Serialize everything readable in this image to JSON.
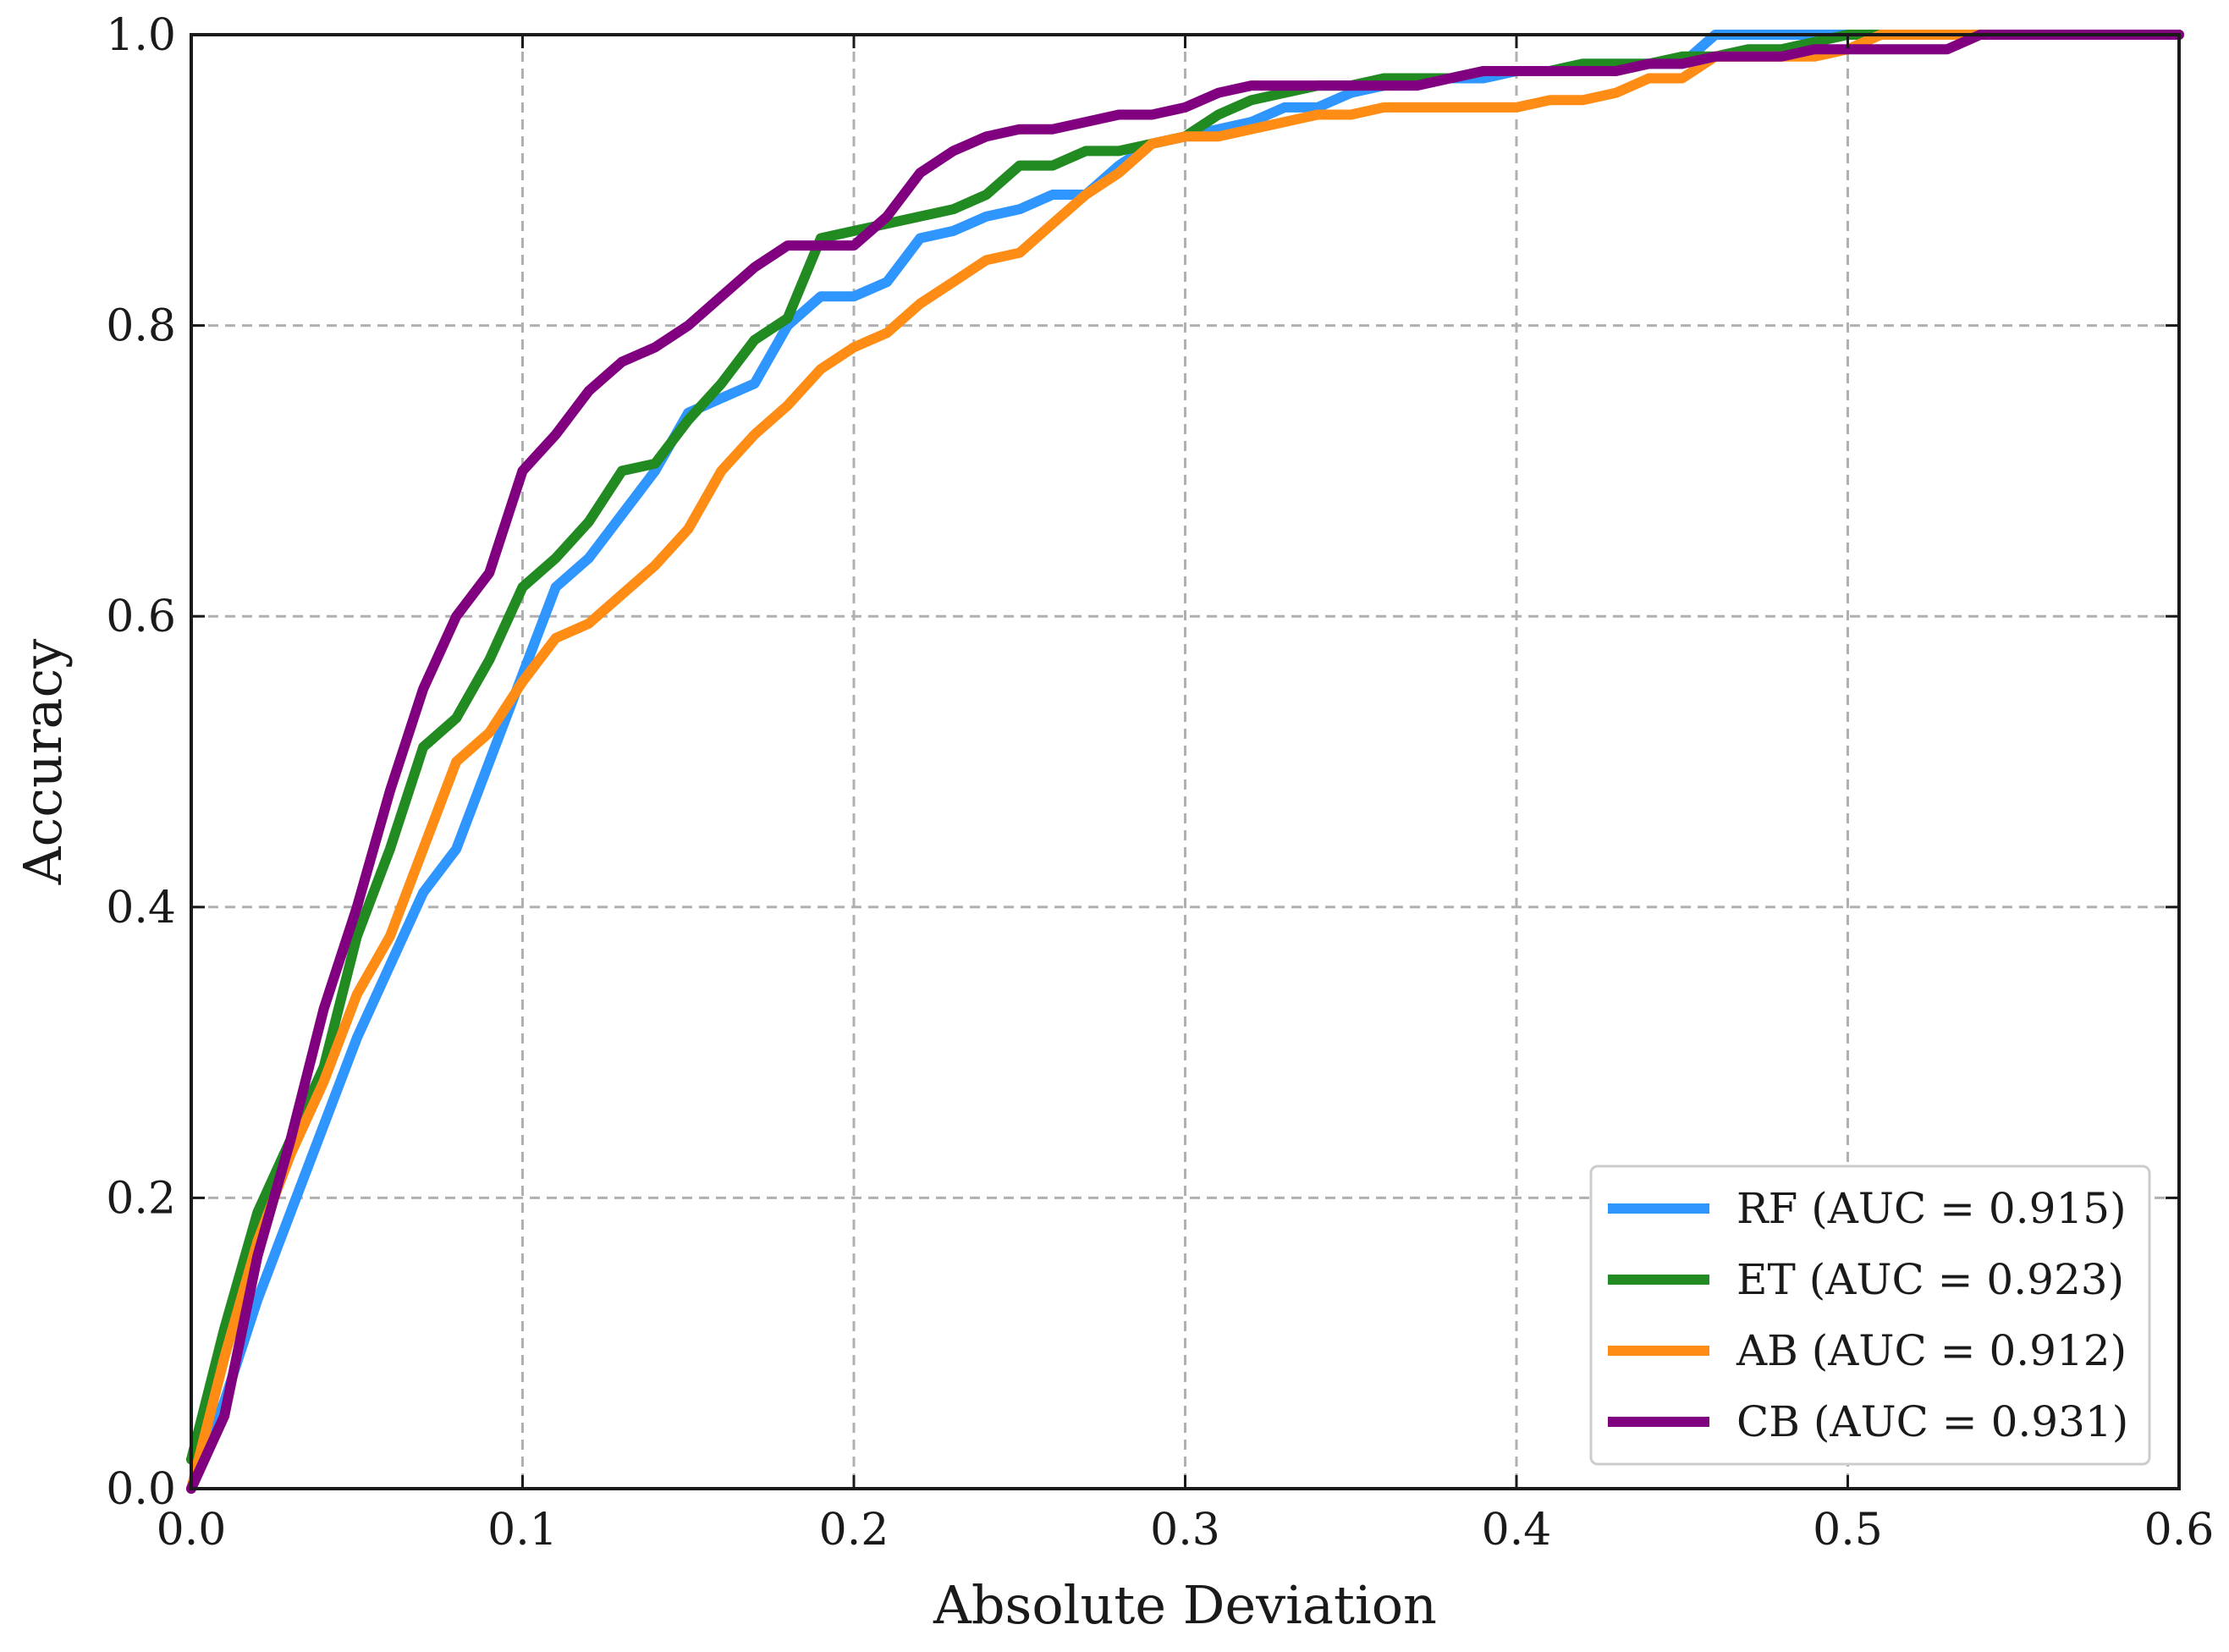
{
  "chart_data": {
    "type": "line",
    "title": "",
    "xlabel": "Absolute Deviation",
    "ylabel": "Accuracy",
    "xlim": [
      0.0,
      0.6
    ],
    "ylim": [
      0.0,
      1.0
    ],
    "grid": true,
    "legend_position": "bottom-right",
    "xticks": [
      0.0,
      0.1,
      0.2,
      0.3,
      0.4,
      0.5,
      0.6
    ],
    "xtick_labels": [
      "0.0",
      "0.1",
      "0.2",
      "0.3",
      "0.4",
      "0.5",
      "0.6"
    ],
    "yticks": [
      0.0,
      0.2,
      0.4,
      0.6,
      0.8,
      1.0
    ],
    "ytick_labels": [
      "0.0",
      "0.2",
      "0.4",
      "0.6",
      "0.8",
      "1.0"
    ],
    "series": [
      {
        "name": "RF",
        "label": "RF (AUC = 0.915)",
        "color": "#2f95ff",
        "x": [
          0.0,
          0.01,
          0.02,
          0.03,
          0.04,
          0.05,
          0.06,
          0.07,
          0.08,
          0.09,
          0.1,
          0.11,
          0.12,
          0.13,
          0.14,
          0.15,
          0.16,
          0.17,
          0.18,
          0.19,
          0.2,
          0.21,
          0.22,
          0.23,
          0.24,
          0.25,
          0.26,
          0.27,
          0.28,
          0.29,
          0.3,
          0.31,
          0.32,
          0.33,
          0.34,
          0.35,
          0.36,
          0.37,
          0.38,
          0.39,
          0.4,
          0.41,
          0.42,
          0.43,
          0.44,
          0.45,
          0.46,
          0.47,
          0.48,
          0.49,
          0.5,
          0.55,
          0.6
        ],
        "y": [
          0.0,
          0.06,
          0.13,
          0.19,
          0.25,
          0.31,
          0.36,
          0.41,
          0.44,
          0.5,
          0.56,
          0.62,
          0.64,
          0.67,
          0.7,
          0.74,
          0.75,
          0.76,
          0.8,
          0.82,
          0.82,
          0.83,
          0.86,
          0.865,
          0.875,
          0.88,
          0.89,
          0.89,
          0.91,
          0.925,
          0.93,
          0.935,
          0.94,
          0.95,
          0.95,
          0.96,
          0.965,
          0.97,
          0.97,
          0.97,
          0.975,
          0.975,
          0.98,
          0.98,
          0.98,
          0.98,
          1.0,
          1.0,
          1.0,
          1.0,
          1.0,
          1.0,
          1.0
        ]
      },
      {
        "name": "ET",
        "label": "ET (AUC = 0.923)",
        "color": "#218a21",
        "x": [
          0.0,
          0.01,
          0.02,
          0.03,
          0.04,
          0.05,
          0.06,
          0.07,
          0.08,
          0.09,
          0.1,
          0.11,
          0.12,
          0.13,
          0.14,
          0.15,
          0.16,
          0.17,
          0.18,
          0.19,
          0.2,
          0.21,
          0.22,
          0.23,
          0.24,
          0.25,
          0.26,
          0.27,
          0.28,
          0.29,
          0.3,
          0.31,
          0.32,
          0.33,
          0.34,
          0.35,
          0.36,
          0.37,
          0.38,
          0.39,
          0.4,
          0.41,
          0.42,
          0.43,
          0.44,
          0.45,
          0.46,
          0.47,
          0.48,
          0.49,
          0.5,
          0.55,
          0.6
        ],
        "y": [
          0.02,
          0.11,
          0.19,
          0.24,
          0.29,
          0.38,
          0.44,
          0.51,
          0.53,
          0.57,
          0.62,
          0.64,
          0.665,
          0.7,
          0.705,
          0.735,
          0.76,
          0.79,
          0.805,
          0.86,
          0.865,
          0.87,
          0.875,
          0.88,
          0.89,
          0.91,
          0.91,
          0.92,
          0.92,
          0.925,
          0.93,
          0.945,
          0.955,
          0.96,
          0.965,
          0.965,
          0.97,
          0.97,
          0.97,
          0.975,
          0.975,
          0.975,
          0.98,
          0.98,
          0.98,
          0.985,
          0.985,
          0.99,
          0.99,
          0.995,
          1.0,
          1.0,
          1.0
        ]
      },
      {
        "name": "AB",
        "label": "AB (AUC = 0.912)",
        "color": "#ff8c14",
        "x": [
          0.0,
          0.01,
          0.02,
          0.03,
          0.04,
          0.05,
          0.06,
          0.07,
          0.08,
          0.09,
          0.1,
          0.11,
          0.12,
          0.13,
          0.14,
          0.15,
          0.16,
          0.17,
          0.18,
          0.19,
          0.2,
          0.21,
          0.22,
          0.23,
          0.24,
          0.25,
          0.26,
          0.27,
          0.28,
          0.29,
          0.3,
          0.31,
          0.32,
          0.33,
          0.34,
          0.35,
          0.36,
          0.37,
          0.38,
          0.39,
          0.4,
          0.41,
          0.42,
          0.43,
          0.44,
          0.45,
          0.46,
          0.47,
          0.48,
          0.49,
          0.5,
          0.51,
          0.55,
          0.6
        ],
        "y": [
          0.0,
          0.09,
          0.17,
          0.23,
          0.28,
          0.34,
          0.38,
          0.44,
          0.5,
          0.52,
          0.555,
          0.585,
          0.595,
          0.615,
          0.635,
          0.66,
          0.7,
          0.725,
          0.745,
          0.77,
          0.785,
          0.795,
          0.815,
          0.83,
          0.845,
          0.85,
          0.87,
          0.89,
          0.905,
          0.925,
          0.93,
          0.93,
          0.935,
          0.94,
          0.945,
          0.945,
          0.95,
          0.95,
          0.95,
          0.95,
          0.95,
          0.955,
          0.955,
          0.96,
          0.97,
          0.97,
          0.985,
          0.985,
          0.985,
          0.985,
          0.99,
          1.0,
          1.0,
          1.0
        ]
      },
      {
        "name": "CB",
        "label": "CB (AUC = 0.931)",
        "color": "#800080",
        "x": [
          0.0,
          0.01,
          0.02,
          0.03,
          0.04,
          0.05,
          0.06,
          0.07,
          0.08,
          0.09,
          0.1,
          0.11,
          0.12,
          0.13,
          0.14,
          0.15,
          0.16,
          0.17,
          0.18,
          0.19,
          0.2,
          0.21,
          0.22,
          0.23,
          0.24,
          0.25,
          0.26,
          0.27,
          0.28,
          0.29,
          0.3,
          0.31,
          0.32,
          0.33,
          0.34,
          0.35,
          0.36,
          0.37,
          0.38,
          0.39,
          0.4,
          0.41,
          0.42,
          0.43,
          0.44,
          0.45,
          0.46,
          0.47,
          0.48,
          0.49,
          0.5,
          0.51,
          0.52,
          0.53,
          0.54,
          0.55,
          0.6
        ],
        "y": [
          0.0,
          0.05,
          0.16,
          0.24,
          0.33,
          0.4,
          0.48,
          0.55,
          0.6,
          0.63,
          0.7,
          0.725,
          0.755,
          0.775,
          0.785,
          0.8,
          0.82,
          0.84,
          0.855,
          0.855,
          0.855,
          0.875,
          0.905,
          0.92,
          0.93,
          0.935,
          0.935,
          0.94,
          0.945,
          0.945,
          0.95,
          0.96,
          0.965,
          0.965,
          0.965,
          0.965,
          0.965,
          0.965,
          0.97,
          0.975,
          0.975,
          0.975,
          0.975,
          0.975,
          0.98,
          0.98,
          0.985,
          0.985,
          0.985,
          0.99,
          0.99,
          0.99,
          0.99,
          0.99,
          1.0,
          1.0,
          1.0
        ]
      }
    ]
  }
}
